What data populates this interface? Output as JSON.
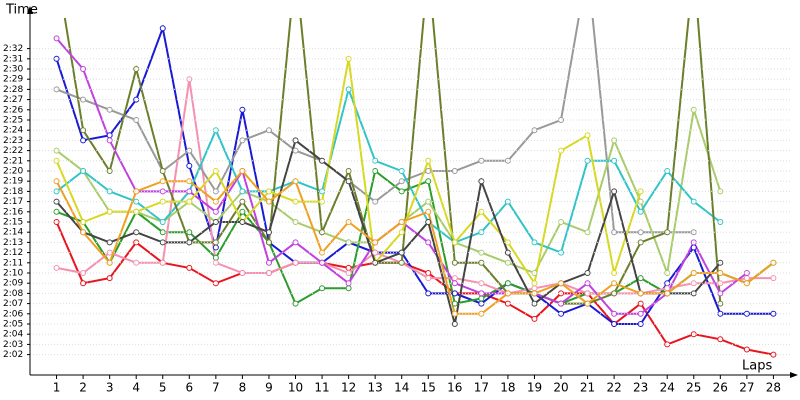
{
  "chart_data": {
    "type": "line",
    "ylabel": "Time",
    "xlabel": "Laps",
    "x": [
      1,
      2,
      3,
      4,
      5,
      6,
      7,
      8,
      9,
      10,
      11,
      12,
      13,
      14,
      15,
      16,
      17,
      18,
      19,
      20,
      21,
      22,
      23,
      24,
      25,
      26,
      27,
      28
    ],
    "xlim": [
      0,
      28.7
    ],
    "xticks": [
      1,
      2,
      3,
      4,
      5,
      6,
      7,
      8,
      9,
      10,
      11,
      12,
      13,
      14,
      15,
      16,
      17,
      18,
      19,
      20,
      21,
      22,
      23,
      24,
      25,
      26,
      27,
      28
    ],
    "ylim": [
      120,
      155
    ],
    "yticks": [
      {
        "value": 122,
        "label": "2:02"
      },
      {
        "value": 123,
        "label": "2:03"
      },
      {
        "value": 124,
        "label": "2:04"
      },
      {
        "value": 125,
        "label": "2:05"
      },
      {
        "value": 126,
        "label": "2:06"
      },
      {
        "value": 127,
        "label": "2:07"
      },
      {
        "value": 128,
        "label": "2:08"
      },
      {
        "value": 129,
        "label": "2:09"
      },
      {
        "value": 130,
        "label": "2:10"
      },
      {
        "value": 131,
        "label": "2:11"
      },
      {
        "value": 132,
        "label": "2:12"
      },
      {
        "value": 133,
        "label": "2:13"
      },
      {
        "value": 134,
        "label": "2:14"
      },
      {
        "value": 135,
        "label": "2:15"
      },
      {
        "value": 136,
        "label": "2:16"
      },
      {
        "value": 137,
        "label": "2:17"
      },
      {
        "value": 138,
        "label": "2:18"
      },
      {
        "value": 139,
        "label": "2:19"
      },
      {
        "value": 140,
        "label": "2:20"
      },
      {
        "value": 141,
        "label": "2:21"
      },
      {
        "value": 142,
        "label": "2:22"
      },
      {
        "value": 143,
        "label": "2:23"
      },
      {
        "value": 144,
        "label": "2:24"
      },
      {
        "value": 145,
        "label": "2:25"
      },
      {
        "value": 146,
        "label": "2:26"
      },
      {
        "value": 147,
        "label": "2:27"
      },
      {
        "value": 148,
        "label": "2:28"
      },
      {
        "value": 149,
        "label": "2:29"
      },
      {
        "value": 150,
        "label": "2:30"
      },
      {
        "value": 151,
        "label": "2:31"
      },
      {
        "value": 152,
        "label": "2:32"
      }
    ],
    "grid": true,
    "series": [
      {
        "color": "#e8141e",
        "values": [
          135,
          129,
          129.5,
          133,
          131,
          130.5,
          129,
          130,
          130,
          131,
          131,
          130.5,
          131,
          131,
          130,
          128,
          128,
          127,
          125.5,
          128,
          128,
          125,
          127,
          123,
          124,
          123.5,
          122.5,
          122
        ]
      },
      {
        "color": "#1a1ad6",
        "values": [
          151,
          143,
          143.5,
          147,
          154,
          140.5,
          132.5,
          146,
          133,
          131,
          131,
          133,
          132,
          132,
          128,
          128,
          127,
          129,
          128,
          126,
          127,
          125,
          125,
          129,
          132.5,
          126,
          126,
          126
        ]
      },
      {
        "color": "#2a9d2a",
        "values": [
          136,
          135,
          131,
          136,
          134,
          134,
          131.5,
          136,
          133,
          127,
          128.5,
          128.5,
          140,
          138,
          139,
          127,
          127.5,
          129,
          128,
          127,
          128,
          128,
          129.5,
          128,
          130,
          130,
          129,
          131
        ]
      },
      {
        "color": "#f590b0",
        "values": [
          130.5,
          130,
          132,
          131,
          131,
          149,
          131,
          130,
          130,
          131,
          131,
          130,
          132,
          131,
          129.5,
          129.5,
          129,
          128,
          128.5,
          129,
          128,
          128,
          128,
          128.5,
          129,
          129,
          129.5,
          129.5
        ]
      },
      {
        "color": "#999999",
        "values": [
          148,
          147,
          146,
          145,
          140,
          142,
          138,
          143,
          144,
          142,
          141,
          139,
          137,
          139,
          140,
          140,
          141,
          141,
          144,
          145,
          160,
          134,
          134,
          134,
          134,
          null,
          null,
          null
        ]
      },
      {
        "color": "#a8cc6a",
        "values": [
          142,
          140,
          136,
          136,
          135,
          137,
          135,
          138,
          137,
          135,
          134,
          133,
          133,
          135,
          137,
          133,
          132,
          131,
          130,
          135,
          134,
          143,
          137,
          130,
          146,
          138,
          null,
          null
        ]
      },
      {
        "color": "#30c4c8",
        "values": [
          138,
          140,
          138,
          137,
          135,
          138,
          144,
          138,
          138,
          139,
          138,
          148,
          141,
          140,
          135,
          133,
          134,
          137,
          133,
          132,
          141,
          141,
          136,
          140,
          137,
          135,
          null,
          null
        ]
      },
      {
        "color": "#6b7f2a",
        "values": [
          160,
          144,
          140,
          150,
          140,
          133,
          133,
          137,
          133,
          160,
          134,
          140,
          131,
          131,
          160,
          131,
          131,
          128,
          128,
          127,
          127,
          128,
          133,
          134,
          160,
          127,
          null,
          null
        ]
      },
      {
        "color": "#c040e0",
        "values": [
          153,
          150,
          143,
          138,
          138,
          138,
          136,
          140,
          131,
          133,
          131,
          129,
          133,
          135,
          133,
          129,
          128,
          128,
          128,
          127,
          129,
          126,
          126,
          128,
          133,
          128,
          130,
          null
        ]
      },
      {
        "color": "#d8d820",
        "values": [
          141,
          135,
          136,
          136,
          137,
          137,
          140,
          135,
          138,
          137,
          137,
          151,
          131,
          134,
          141,
          133,
          136,
          133,
          129,
          142,
          143.5,
          130,
          138,
          null,
          null,
          null,
          null,
          null
        ]
      },
      {
        "color": "#444444",
        "values": [
          137,
          134,
          133,
          134,
          133,
          133,
          135,
          135,
          134,
          143,
          141,
          139,
          131,
          132,
          135,
          125,
          139,
          132,
          127,
          129,
          130,
          138,
          128,
          128,
          128,
          131,
          null,
          null
        ]
      },
      {
        "color": "#f0a020",
        "values": [
          139,
          134,
          131,
          138,
          139,
          139,
          137,
          140,
          137,
          139,
          132,
          135,
          133,
          135,
          136,
          126,
          126,
          128,
          128,
          129,
          127,
          129,
          128,
          128,
          130,
          130,
          129,
          131
        ]
      }
    ]
  }
}
